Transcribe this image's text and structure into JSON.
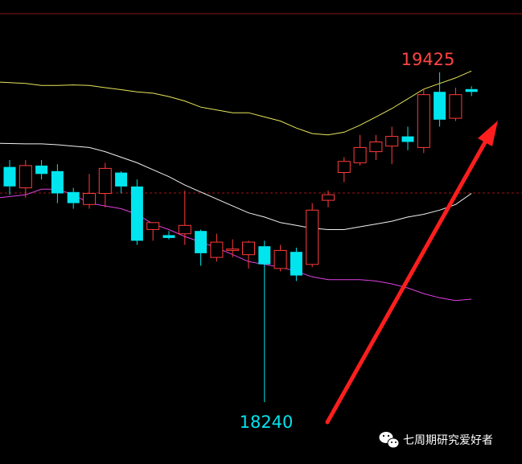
{
  "chart_data": {
    "type": "candlestick",
    "title": "",
    "colors": {
      "up": "#ff3b3b",
      "down": "#00e5ee",
      "upper_band": "#e6e65a",
      "middle_band": "#f2f2f2",
      "lower_band": "#e040e0",
      "high_label": "#ff4444",
      "low_label": "#00e5ee",
      "arrow": "#ff1e1e",
      "dashed_lines": "#a01414"
    },
    "candles": [
      {
        "o": 19085,
        "h": 19110,
        "c": 19015,
        "l": 18985
      },
      {
        "o": 19010,
        "h": 19110,
        "c": 19090,
        "l": 18975
      },
      {
        "o": 19090,
        "h": 19110,
        "c": 19060,
        "l": 19040
      },
      {
        "o": 19070,
        "h": 19095,
        "c": 18990,
        "l": 18955
      },
      {
        "o": 18995,
        "h": 19010,
        "c": 18955,
        "l": 18935
      },
      {
        "o": 18950,
        "h": 19060,
        "c": 18990,
        "l": 18935
      },
      {
        "o": 18990,
        "h": 19100,
        "c": 19080,
        "l": 18940
      },
      {
        "o": 19065,
        "h": 19070,
        "c": 19015,
        "l": 18990
      },
      {
        "o": 19015,
        "h": 19040,
        "c": 18820,
        "l": 18805
      },
      {
        "o": 18860,
        "h": 18880,
        "c": 18885,
        "l": 18820
      },
      {
        "o": 18840,
        "h": 18855,
        "c": 18830,
        "l": 18825
      },
      {
        "o": 18845,
        "h": 19000,
        "c": 18875,
        "l": 18805
      },
      {
        "o": 18855,
        "h": 18860,
        "c": 18775,
        "l": 18730
      },
      {
        "o": 18760,
        "h": 18845,
        "c": 18815,
        "l": 18745
      },
      {
        "o": 18785,
        "h": 18825,
        "c": 18790,
        "l": 18760
      },
      {
        "o": 18770,
        "h": 18820,
        "c": 18815,
        "l": 18720
      },
      {
        "o": 18800,
        "h": 18820,
        "c": 18735,
        "l": 18240
      },
      {
        "o": 18720,
        "h": 18805,
        "c": 18785,
        "l": 18710
      },
      {
        "o": 18780,
        "h": 18795,
        "c": 18695,
        "l": 18675
      },
      {
        "o": 18735,
        "h": 18955,
        "c": 18930,
        "l": 18725
      },
      {
        "o": 18965,
        "h": 19000,
        "c": 18985,
        "l": 18940
      },
      {
        "o": 19065,
        "h": 19120,
        "c": 19105,
        "l": 19030
      },
      {
        "o": 19100,
        "h": 19200,
        "c": 19155,
        "l": 19090
      },
      {
        "o": 19140,
        "h": 19200,
        "c": 19175,
        "l": 19110
      },
      {
        "o": 19160,
        "h": 19230,
        "c": 19195,
        "l": 19095
      },
      {
        "o": 19195,
        "h": 19230,
        "c": 19175,
        "l": 19145
      },
      {
        "o": 19155,
        "h": 19365,
        "c": 19345,
        "l": 19135
      },
      {
        "o": 19355,
        "h": 19425,
        "c": 19255,
        "l": 19230
      },
      {
        "o": 19260,
        "h": 19370,
        "c": 19345,
        "l": 19250
      },
      {
        "o": 19365,
        "h": 19375,
        "c": 19355,
        "l": 19340
      }
    ],
    "bollinger": {
      "upper": [
        19390,
        19385,
        19378,
        19378,
        19380,
        19378,
        19370,
        19363,
        19355,
        19350,
        19338,
        19322,
        19300,
        19290,
        19280,
        19280,
        19265,
        19250,
        19225,
        19205,
        19200,
        19210,
        19235,
        19265,
        19295,
        19330,
        19365,
        19385,
        19405,
        19430
      ],
      "middle": [
        19170,
        19168,
        19168,
        19165,
        19160,
        19155,
        19140,
        19120,
        19100,
        19075,
        19050,
        19020,
        18995,
        18970,
        18945,
        18920,
        18905,
        18885,
        18875,
        18865,
        18860,
        18860,
        18870,
        18880,
        18890,
        18905,
        18915,
        18930,
        18950,
        18990
      ],
      "lower": [
        18975,
        18985,
        19005,
        19005,
        18985,
        18955,
        18945,
        18935,
        18915,
        18880,
        18860,
        18835,
        18815,
        18795,
        18770,
        18745,
        18735,
        18725,
        18710,
        18690,
        18680,
        18680,
        18680,
        18675,
        18665,
        18650,
        18630,
        18615,
        18605,
        18610
      ]
    },
    "annotations": {
      "high_label": "19425",
      "low_label": "18240"
    }
  },
  "watermark": {
    "icon": "wechat-icon",
    "text": "七周期研究爱好者"
  }
}
